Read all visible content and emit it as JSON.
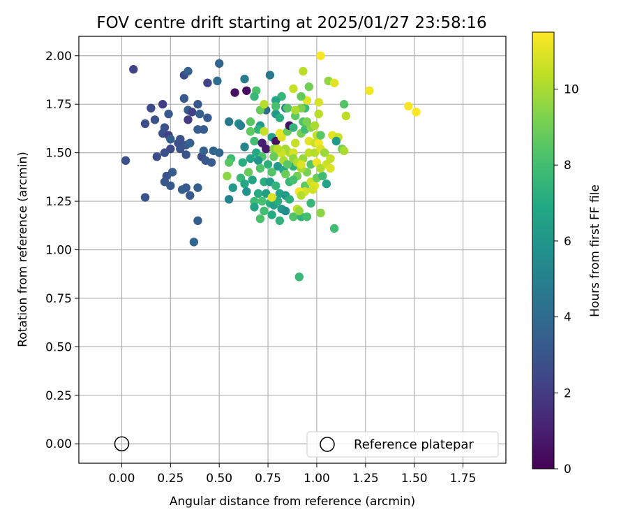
{
  "chart_data": {
    "type": "scatter",
    "title": "FOV centre drift starting at 2025/01/27 23:58:16",
    "xlabel": "Angular distance from reference (arcmin)",
    "ylabel": "Rotation from reference (arcmin)",
    "xlim": [
      -0.22,
      1.97
    ],
    "ylim": [
      -0.1,
      2.1
    ],
    "xticks": [
      "0.00",
      "0.25",
      "0.50",
      "0.75",
      "1.00",
      "1.25",
      "1.50",
      "1.75"
    ],
    "yticks": [
      "0.00",
      "0.25",
      "0.50",
      "0.75",
      "1.00",
      "1.25",
      "1.50",
      "1.75",
      "2.00"
    ],
    "grid": true,
    "colormap": "viridis",
    "colorbar": {
      "label": "Hours from first FF file",
      "range": [
        0,
        11.5
      ],
      "ticks": [
        "0",
        "2",
        "4",
        "6",
        "8",
        "10"
      ]
    },
    "legend": {
      "position": "lower-right",
      "entries": [
        "Reference platepar"
      ]
    },
    "reference_point": {
      "x": 0.0,
      "y": 0.0
    },
    "points": [
      {
        "x": 0.06,
        "y": 1.93,
        "h": 2.3
      },
      {
        "x": 0.32,
        "y": 1.9,
        "h": 2.6
      },
      {
        "x": 0.34,
        "y": 1.92,
        "h": 3.6
      },
      {
        "x": 0.44,
        "y": 1.86,
        "h": 2.3
      },
      {
        "x": 0.5,
        "y": 1.96,
        "h": 3.7
      },
      {
        "x": 0.49,
        "y": 1.87,
        "h": 4.1
      },
      {
        "x": 0.32,
        "y": 1.78,
        "h": 3.2
      },
      {
        "x": 0.21,
        "y": 1.75,
        "h": 2.1
      },
      {
        "x": 0.15,
        "y": 1.73,
        "h": 2.6
      },
      {
        "x": 0.24,
        "y": 1.7,
        "h": 3.2
      },
      {
        "x": 0.17,
        "y": 1.67,
        "h": 2.8
      },
      {
        "x": 0.12,
        "y": 1.65,
        "h": 2.7
      },
      {
        "x": 0.34,
        "y": 1.72,
        "h": 3.4
      },
      {
        "x": 0.36,
        "y": 1.71,
        "h": 2.2
      },
      {
        "x": 0.39,
        "y": 1.75,
        "h": 3.1
      },
      {
        "x": 0.4,
        "y": 1.7,
        "h": 3.5
      },
      {
        "x": 0.44,
        "y": 1.68,
        "h": 3.2
      },
      {
        "x": 0.34,
        "y": 1.67,
        "h": 2.0
      },
      {
        "x": 0.22,
        "y": 1.63,
        "h": 3.0
      },
      {
        "x": 0.21,
        "y": 1.6,
        "h": 2.8
      },
      {
        "x": 0.24,
        "y": 1.59,
        "h": 2.2
      },
      {
        "x": 0.25,
        "y": 1.57,
        "h": 3.5
      },
      {
        "x": 0.29,
        "y": 1.55,
        "h": 2.7
      },
      {
        "x": 0.3,
        "y": 1.57,
        "h": 2.9
      },
      {
        "x": 0.33,
        "y": 1.54,
        "h": 3.2
      },
      {
        "x": 0.35,
        "y": 1.55,
        "h": 3.6
      },
      {
        "x": 0.39,
        "y": 1.62,
        "h": 3.4
      },
      {
        "x": 0.42,
        "y": 1.62,
        "h": 3.3
      },
      {
        "x": 0.3,
        "y": 1.52,
        "h": 3.0
      },
      {
        "x": 0.25,
        "y": 1.52,
        "h": 2.5
      },
      {
        "x": 0.22,
        "y": 1.5,
        "h": 2.8
      },
      {
        "x": 0.18,
        "y": 1.48,
        "h": 2.7
      },
      {
        "x": 0.33,
        "y": 1.49,
        "h": 3.0
      },
      {
        "x": 0.41,
        "y": 1.48,
        "h": 2.5
      },
      {
        "x": 0.43,
        "y": 1.46,
        "h": 3.1
      },
      {
        "x": 0.46,
        "y": 1.45,
        "h": 3.3
      },
      {
        "x": 0.42,
        "y": 1.51,
        "h": 3.6
      },
      {
        "x": 0.47,
        "y": 1.51,
        "h": 3.7
      },
      {
        "x": 0.5,
        "y": 1.5,
        "h": 3.8
      },
      {
        "x": 0.02,
        "y": 1.46,
        "h": 2.8
      },
      {
        "x": 0.23,
        "y": 1.38,
        "h": 3.0
      },
      {
        "x": 0.26,
        "y": 1.4,
        "h": 3.3
      },
      {
        "x": 0.22,
        "y": 1.35,
        "h": 3.1
      },
      {
        "x": 0.25,
        "y": 1.33,
        "h": 3.2
      },
      {
        "x": 0.31,
        "y": 1.31,
        "h": 3.5
      },
      {
        "x": 0.33,
        "y": 1.32,
        "h": 3.3
      },
      {
        "x": 0.35,
        "y": 1.28,
        "h": 3.2
      },
      {
        "x": 0.39,
        "y": 1.32,
        "h": 3.5
      },
      {
        "x": 0.12,
        "y": 1.27,
        "h": 3.0
      },
      {
        "x": 0.39,
        "y": 1.15,
        "h": 3.4
      },
      {
        "x": 0.37,
        "y": 1.04,
        "h": 3.8
      },
      {
        "x": 0.58,
        "y": 1.81,
        "h": 0.5
      },
      {
        "x": 0.64,
        "y": 1.82,
        "h": 0.4
      },
      {
        "x": 0.63,
        "y": 1.88,
        "h": 4.8
      },
      {
        "x": 0.76,
        "y": 1.9,
        "h": 4.6
      },
      {
        "x": 0.69,
        "y": 1.82,
        "h": 8.2
      },
      {
        "x": 0.68,
        "y": 1.79,
        "h": 7.6
      },
      {
        "x": 0.82,
        "y": 1.79,
        "h": 7.6
      },
      {
        "x": 0.79,
        "y": 1.77,
        "h": 6.8
      },
      {
        "x": 0.84,
        "y": 1.73,
        "h": 5.3
      },
      {
        "x": 0.74,
        "y": 1.72,
        "h": 4.1
      },
      {
        "x": 0.71,
        "y": 1.72,
        "h": 8.8
      },
      {
        "x": 0.79,
        "y": 1.7,
        "h": 6.2
      },
      {
        "x": 0.81,
        "y": 1.68,
        "h": 7.2
      },
      {
        "x": 0.66,
        "y": 1.66,
        "h": 8.5
      },
      {
        "x": 0.55,
        "y": 1.66,
        "h": 4.6
      },
      {
        "x": 0.6,
        "y": 1.65,
        "h": 5.7
      },
      {
        "x": 0.61,
        "y": 1.64,
        "h": 4.9
      },
      {
        "x": 0.71,
        "y": 1.64,
        "h": 6.1
      },
      {
        "x": 0.7,
        "y": 1.62,
        "h": 7.4
      },
      {
        "x": 0.66,
        "y": 1.61,
        "h": 8.6
      },
      {
        "x": 0.73,
        "y": 1.61,
        "h": 10.5
      },
      {
        "x": 0.77,
        "y": 1.58,
        "h": 6.5
      },
      {
        "x": 0.79,
        "y": 1.56,
        "h": 0.6
      },
      {
        "x": 0.68,
        "y": 1.56,
        "h": 7.9
      },
      {
        "x": 0.72,
        "y": 1.55,
        "h": 1.0
      },
      {
        "x": 0.63,
        "y": 1.53,
        "h": 5.2
      },
      {
        "x": 0.74,
        "y": 1.52,
        "h": 0.8
      },
      {
        "x": 0.78,
        "y": 1.52,
        "h": 9.5
      },
      {
        "x": 0.81,
        "y": 1.5,
        "h": 10.8
      },
      {
        "x": 0.69,
        "y": 1.5,
        "h": 6.9
      },
      {
        "x": 0.72,
        "y": 1.48,
        "h": 8.2
      },
      {
        "x": 0.66,
        "y": 1.47,
        "h": 6.6
      },
      {
        "x": 0.56,
        "y": 1.47,
        "h": 7.8
      },
      {
        "x": 0.55,
        "y": 1.45,
        "h": 8.5
      },
      {
        "x": 0.62,
        "y": 1.45,
        "h": 7.1
      },
      {
        "x": 0.7,
        "y": 1.46,
        "h": 5.9
      },
      {
        "x": 0.75,
        "y": 1.44,
        "h": 7.3
      },
      {
        "x": 0.8,
        "y": 1.43,
        "h": 6.1
      },
      {
        "x": 0.83,
        "y": 1.41,
        "h": 6.8
      },
      {
        "x": 0.71,
        "y": 1.42,
        "h": 8.3
      },
      {
        "x": 0.65,
        "y": 1.4,
        "h": 8.8
      },
      {
        "x": 0.61,
        "y": 1.37,
        "h": 7.6
      },
      {
        "x": 0.67,
        "y": 1.36,
        "h": 6.7
      },
      {
        "x": 0.73,
        "y": 1.35,
        "h": 7.2
      },
      {
        "x": 0.76,
        "y": 1.35,
        "h": 6.3
      },
      {
        "x": 0.79,
        "y": 1.33,
        "h": 7.5
      },
      {
        "x": 0.63,
        "y": 1.34,
        "h": 6.9
      },
      {
        "x": 0.57,
        "y": 1.32,
        "h": 6.1
      },
      {
        "x": 0.54,
        "y": 1.38,
        "h": 9.5
      },
      {
        "x": 0.64,
        "y": 1.3,
        "h": 5.8
      },
      {
        "x": 0.7,
        "y": 1.29,
        "h": 7.0
      },
      {
        "x": 0.74,
        "y": 1.29,
        "h": 6.4
      },
      {
        "x": 0.81,
        "y": 1.29,
        "h": 6.6
      },
      {
        "x": 0.84,
        "y": 1.28,
        "h": 6.2
      },
      {
        "x": 0.55,
        "y": 1.26,
        "h": 5.1
      },
      {
        "x": 0.68,
        "y": 1.25,
        "h": 7.8
      },
      {
        "x": 0.72,
        "y": 1.25,
        "h": 8.1
      },
      {
        "x": 0.76,
        "y": 1.24,
        "h": 7.2
      },
      {
        "x": 0.78,
        "y": 1.23,
        "h": 6.5
      },
      {
        "x": 0.8,
        "y": 1.25,
        "h": 7.1
      },
      {
        "x": 0.68,
        "y": 1.22,
        "h": 6.7
      },
      {
        "x": 0.73,
        "y": 1.2,
        "h": 7.9
      },
      {
        "x": 0.77,
        "y": 1.18,
        "h": 7.0
      },
      {
        "x": 0.82,
        "y": 1.21,
        "h": 6.1
      },
      {
        "x": 0.84,
        "y": 1.2,
        "h": 5.6
      },
      {
        "x": 0.81,
        "y": 1.15,
        "h": 7.4
      },
      {
        "x": 0.71,
        "y": 1.16,
        "h": 8.2
      },
      {
        "x": 0.88,
        "y": 1.17,
        "h": 8.3
      },
      {
        "x": 0.92,
        "y": 1.17,
        "h": 7.5
      },
      {
        "x": 0.95,
        "y": 1.17,
        "h": 8.0
      },
      {
        "x": 0.9,
        "y": 1.21,
        "h": 10.4
      },
      {
        "x": 0.91,
        "y": 1.2,
        "h": 9.7
      },
      {
        "x": 0.97,
        "y": 1.24,
        "h": 7.6
      },
      {
        "x": 0.86,
        "y": 1.26,
        "h": 7.2
      },
      {
        "x": 0.77,
        "y": 1.27,
        "h": 10.9
      },
      {
        "x": 1.02,
        "y": 1.19,
        "h": 9.5
      },
      {
        "x": 1.09,
        "y": 1.11,
        "h": 7.9
      },
      {
        "x": 0.91,
        "y": 0.86,
        "h": 7.7
      },
      {
        "x": 0.84,
        "y": 1.39,
        "h": 8.9
      },
      {
        "x": 0.88,
        "y": 1.43,
        "h": 7.3
      },
      {
        "x": 0.9,
        "y": 1.38,
        "h": 9.1
      },
      {
        "x": 0.86,
        "y": 1.35,
        "h": 7.6
      },
      {
        "x": 0.94,
        "y": 1.33,
        "h": 8.6
      },
      {
        "x": 0.97,
        "y": 1.35,
        "h": 10.6
      },
      {
        "x": 0.99,
        "y": 1.33,
        "h": 11.0
      },
      {
        "x": 1.05,
        "y": 1.34,
        "h": 6.6
      },
      {
        "x": 0.94,
        "y": 1.3,
        "h": 10.8
      },
      {
        "x": 0.91,
        "y": 1.3,
        "h": 11.3
      },
      {
        "x": 0.92,
        "y": 1.28,
        "h": 10.2
      },
      {
        "x": 0.98,
        "y": 1.31,
        "h": 10.7
      },
      {
        "x": 1.0,
        "y": 1.37,
        "h": 8.9
      },
      {
        "x": 1.03,
        "y": 1.38,
        "h": 7.8
      },
      {
        "x": 0.95,
        "y": 1.4,
        "h": 9.2
      },
      {
        "x": 0.92,
        "y": 1.42,
        "h": 10.0
      },
      {
        "x": 0.97,
        "y": 1.44,
        "h": 8.4
      },
      {
        "x": 1.0,
        "y": 1.45,
        "h": 11.2
      },
      {
        "x": 1.02,
        "y": 1.42,
        "h": 10.1
      },
      {
        "x": 1.05,
        "y": 1.44,
        "h": 10.6
      },
      {
        "x": 1.07,
        "y": 1.42,
        "h": 10.9
      },
      {
        "x": 1.07,
        "y": 1.47,
        "h": 10.5
      },
      {
        "x": 0.93,
        "y": 1.47,
        "h": 9.7
      },
      {
        "x": 0.96,
        "y": 1.5,
        "h": 10.4
      },
      {
        "x": 0.99,
        "y": 1.5,
        "h": 10.2
      },
      {
        "x": 0.96,
        "y": 1.56,
        "h": 11.0
      },
      {
        "x": 0.99,
        "y": 1.55,
        "h": 10.6
      },
      {
        "x": 1.01,
        "y": 1.55,
        "h": 11.3
      },
      {
        "x": 1.02,
        "y": 1.52,
        "h": 10.9
      },
      {
        "x": 1.04,
        "y": 1.5,
        "h": 9.8
      },
      {
        "x": 1.0,
        "y": 1.59,
        "h": 10.5
      },
      {
        "x": 1.02,
        "y": 1.59,
        "h": 8.5
      },
      {
        "x": 0.89,
        "y": 1.55,
        "h": 10.5
      },
      {
        "x": 0.86,
        "y": 1.5,
        "h": 10.1
      },
      {
        "x": 0.88,
        "y": 1.5,
        "h": 10.8
      },
      {
        "x": 0.84,
        "y": 1.52,
        "h": 9.9
      },
      {
        "x": 0.82,
        "y": 1.5,
        "h": 10.6
      },
      {
        "x": 0.8,
        "y": 1.52,
        "h": 10.3
      },
      {
        "x": 0.78,
        "y": 1.48,
        "h": 8.8
      },
      {
        "x": 0.83,
        "y": 1.46,
        "h": 10.0
      },
      {
        "x": 0.85,
        "y": 1.44,
        "h": 8.5
      },
      {
        "x": 0.82,
        "y": 1.58,
        "h": 10.9
      },
      {
        "x": 0.81,
        "y": 1.6,
        "h": 11.1
      },
      {
        "x": 0.85,
        "y": 1.61,
        "h": 8.8
      },
      {
        "x": 0.86,
        "y": 1.64,
        "h": 0.5
      },
      {
        "x": 0.88,
        "y": 1.63,
        "h": 7.5
      },
      {
        "x": 0.92,
        "y": 1.6,
        "h": 9.1
      },
      {
        "x": 0.94,
        "y": 1.62,
        "h": 8.0
      },
      {
        "x": 0.97,
        "y": 1.63,
        "h": 9.4
      },
      {
        "x": 0.99,
        "y": 1.64,
        "h": 10.0
      },
      {
        "x": 0.93,
        "y": 1.66,
        "h": 8.3
      },
      {
        "x": 0.95,
        "y": 1.66,
        "h": 9.2
      },
      {
        "x": 0.89,
        "y": 1.69,
        "h": 8.6
      },
      {
        "x": 0.94,
        "y": 1.73,
        "h": 7.8
      },
      {
        "x": 1.01,
        "y": 1.7,
        "h": 10.3
      },
      {
        "x": 0.92,
        "y": 1.73,
        "h": 9.3
      },
      {
        "x": 0.85,
        "y": 1.73,
        "h": 8.4
      },
      {
        "x": 0.89,
        "y": 1.72,
        "h": 10.0
      },
      {
        "x": 0.79,
        "y": 1.74,
        "h": 8.1
      },
      {
        "x": 0.73,
        "y": 1.75,
        "h": 10.2
      },
      {
        "x": 0.95,
        "y": 1.77,
        "h": 11.0
      },
      {
        "x": 0.92,
        "y": 1.79,
        "h": 8.7
      },
      {
        "x": 0.88,
        "y": 1.83,
        "h": 10.5
      },
      {
        "x": 0.96,
        "y": 1.84,
        "h": 9.0
      },
      {
        "x": 1.01,
        "y": 1.76,
        "h": 10.8
      },
      {
        "x": 1.06,
        "y": 1.87,
        "h": 9.6
      },
      {
        "x": 1.09,
        "y": 1.86,
        "h": 11.0
      },
      {
        "x": 1.02,
        "y": 2.0,
        "h": 11.4
      },
      {
        "x": 0.93,
        "y": 1.92,
        "h": 10.3
      },
      {
        "x": 1.14,
        "y": 1.75,
        "h": 8.4
      },
      {
        "x": 1.15,
        "y": 1.69,
        "h": 10.3
      },
      {
        "x": 1.27,
        "y": 1.82,
        "h": 11.3
      },
      {
        "x": 1.47,
        "y": 1.74,
        "h": 11.4
      },
      {
        "x": 1.51,
        "y": 1.71,
        "h": 11.5
      },
      {
        "x": 1.08,
        "y": 1.59,
        "h": 11.0
      },
      {
        "x": 1.11,
        "y": 1.58,
        "h": 10.6
      },
      {
        "x": 1.1,
        "y": 1.56,
        "h": 6.2
      },
      {
        "x": 1.13,
        "y": 1.52,
        "h": 9.2
      },
      {
        "x": 1.14,
        "y": 1.51,
        "h": 10.0
      },
      {
        "x": 0.88,
        "y": 1.47,
        "h": 9.6
      },
      {
        "x": 0.9,
        "y": 1.45,
        "h": 10.1
      },
      {
        "x": 0.92,
        "y": 1.44,
        "h": 10.9
      },
      {
        "x": 0.77,
        "y": 1.4,
        "h": 8.4
      },
      {
        "x": 0.88,
        "y": 1.36,
        "h": 8.1
      }
    ]
  }
}
